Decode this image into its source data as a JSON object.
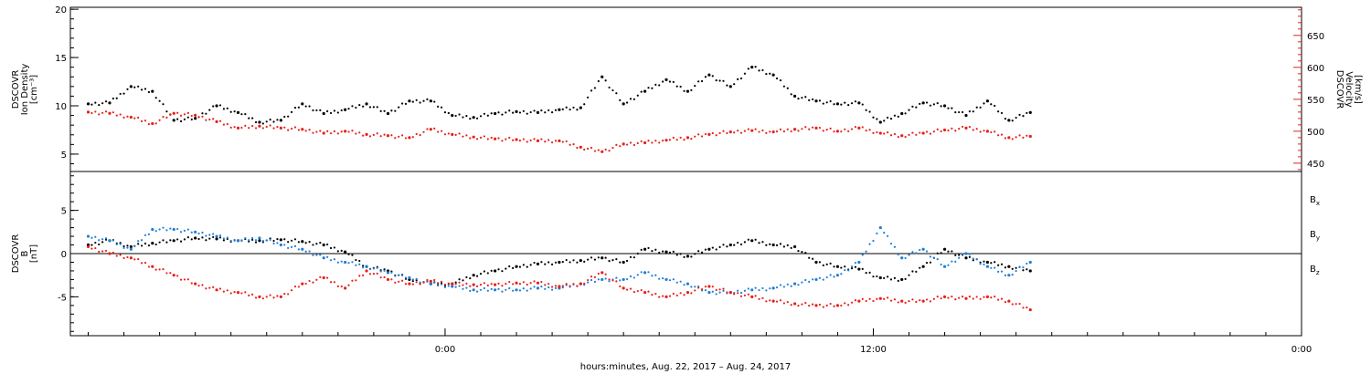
{
  "chart_data": [
    {
      "type": "scatter",
      "panel": "top",
      "left_axis": {
        "label_lines": [
          "DSCOVR",
          "Ion Density",
          "[cm⁻³]"
        ],
        "ticks": [
          "20",
          "15",
          "10",
          "5"
        ],
        "ylim": [
          3.2,
          20.2
        ],
        "color": "#000000"
      },
      "right_axis": {
        "label_lines": [
          "DSCOVR",
          "Velocity",
          "[km/s]"
        ],
        "ticks": [
          "650",
          "600",
          "550",
          "500",
          "450"
        ],
        "ylim": [
          437,
          694
        ],
        "color": "#e8201a"
      },
      "series": [
        {
          "role": "density",
          "axis": "left",
          "color": "#000000",
          "x": [
            -10,
            -9.4,
            -8.8,
            -8.2,
            -7.6,
            -7,
            -6.4,
            -5.8,
            -5.2,
            -4.6,
            -4,
            -3.4,
            -2.8,
            -2.2,
            -1.6,
            -1,
            -0.4,
            0.2,
            0.8,
            1.4,
            2,
            2.6,
            3.2,
            3.8,
            4.4,
            5,
            5.6,
            6.2,
            6.8,
            7.4,
            8,
            8.6,
            9.2,
            9.8,
            10.4,
            11,
            11.6,
            12.2,
            12.8,
            13.4,
            14,
            14.6,
            15.2,
            15.8,
            16.4
          ],
          "y": [
            10.2,
            10.3,
            12.0,
            11.5,
            8.5,
            8.7,
            10.0,
            9.3,
            8.3,
            8.5,
            10.2,
            9.2,
            9.6,
            10.2,
            9.2,
            10.5,
            10.5,
            9.0,
            8.8,
            9.2,
            9.4,
            9.3,
            9.6,
            9.8,
            13.0,
            10.2,
            11.5,
            12.7,
            11.5,
            13.2,
            12.0,
            14.0,
            13.2,
            11.0,
            10.5,
            10.2,
            10.3,
            8.3,
            9.2,
            10.3,
            10.0,
            9.0,
            10.5,
            8.5,
            9.3
          ]
        },
        {
          "role": "velocity",
          "axis": "right",
          "color": "#e8201a",
          "x": [
            -10,
            -9.4,
            -8.8,
            -8.2,
            -7.6,
            -7,
            -6.4,
            -5.8,
            -5.2,
            -4.6,
            -4,
            -3.4,
            -2.8,
            -2.2,
            -1.6,
            -1,
            -0.4,
            0.2,
            0.8,
            1.4,
            2,
            2.6,
            3.2,
            3.8,
            4.4,
            5,
            5.6,
            6.2,
            6.8,
            7.4,
            8,
            8.6,
            9.2,
            9.8,
            10.4,
            11,
            11.6,
            12.2,
            12.8,
            13.4,
            14,
            14.6,
            15.2,
            15.8,
            16.4
          ],
          "y": [
            530,
            528,
            522,
            512,
            528,
            525,
            515,
            505,
            508,
            505,
            503,
            497,
            500,
            495,
            493,
            490,
            503,
            495,
            491,
            488,
            487,
            485,
            485,
            475,
            468,
            480,
            482,
            486,
            490,
            495,
            499,
            501,
            499,
            503,
            505,
            500,
            505,
            497,
            493,
            497,
            502,
            505,
            500,
            490,
            492
          ]
        }
      ]
    },
    {
      "type": "scatter",
      "panel": "bottom",
      "left_axis": {
        "label_lines": [
          "DSCOVR",
          "B",
          "[nT]"
        ],
        "ticks": [
          "5",
          "0",
          "-5"
        ],
        "ylim": [
          -9.5,
          9.5
        ],
        "color": "#000000"
      },
      "zero_line": true,
      "series": [
        {
          "name": "Bx",
          "color": "#000000",
          "x": [
            -10,
            -9.4,
            -8.8,
            -8.2,
            -7.6,
            -7,
            -6.4,
            -5.8,
            -5.2,
            -4.6,
            -4,
            -3.4,
            -2.8,
            -2.2,
            -1.6,
            -1,
            -0.4,
            0.2,
            0.8,
            1.4,
            2,
            2.6,
            3.2,
            3.8,
            4.4,
            5,
            5.6,
            6.2,
            6.8,
            7.4,
            8,
            8.6,
            9.2,
            9.8,
            10.4,
            11,
            11.6,
            12.2,
            12.8,
            13.4,
            14,
            14.6,
            15.2,
            15.8,
            16.4
          ],
          "y": [
            1.0,
            1.5,
            0.8,
            1.2,
            1.5,
            1.8,
            1.7,
            1.5,
            1.5,
            1.6,
            1.4,
            1.0,
            0.2,
            -1.5,
            -2.0,
            -3.0,
            -3.5,
            -3.5,
            -2.5,
            -2.0,
            -1.5,
            -1.2,
            -1.0,
            -0.8,
            -0.5,
            -1.0,
            0.5,
            0.2,
            -0.3,
            0.5,
            1.0,
            1.5,
            1.0,
            0.8,
            -1.0,
            -1.5,
            -1.8,
            -2.8,
            -3.0,
            -1.5,
            0.5,
            -0.5,
            -1.0,
            -1.5,
            -2.0
          ]
        },
        {
          "name": "By",
          "color": "#1f7fd6",
          "x": [
            -10,
            -9.4,
            -8.8,
            -8.2,
            -7.6,
            -7,
            -6.4,
            -5.8,
            -5.2,
            -4.6,
            -4,
            -3.4,
            -2.8,
            -2.2,
            -1.6,
            -1,
            -0.4,
            0.2,
            0.8,
            1.4,
            2,
            2.6,
            3.2,
            3.8,
            4.4,
            5,
            5.6,
            6.2,
            6.8,
            7.4,
            8,
            8.6,
            9.2,
            9.8,
            10.4,
            11,
            11.6,
            12.2,
            12.8,
            13.4,
            14,
            14.6,
            15.2,
            15.8,
            16.4
          ],
          "y": [
            2.0,
            1.5,
            0.5,
            2.8,
            2.8,
            2.5,
            2.0,
            1.5,
            1.8,
            1.0,
            0.5,
            -0.5,
            -1.0,
            -1.5,
            -2.2,
            -2.8,
            -3.5,
            -3.8,
            -4.2,
            -4.2,
            -4.2,
            -4.0,
            -4.0,
            -3.5,
            -3.0,
            -3.0,
            -2.2,
            -3.0,
            -3.5,
            -4.5,
            -4.5,
            -4.2,
            -4.0,
            -3.5,
            -3.0,
            -2.5,
            -1.0,
            3.0,
            -0.5,
            0.5,
            -1.5,
            0.0,
            -1.5,
            -2.5,
            -1.0
          ]
        },
        {
          "name": "Bz",
          "color": "#e8201a",
          "x": [
            -10,
            -9.4,
            -8.8,
            -8.2,
            -7.6,
            -7,
            -6.4,
            -5.8,
            -5.2,
            -4.6,
            -4,
            -3.4,
            -2.8,
            -2.2,
            -1.6,
            -1,
            -0.4,
            0.2,
            0.8,
            1.4,
            2,
            2.6,
            3.2,
            3.8,
            4.4,
            5,
            5.6,
            6.2,
            6.8,
            7.4,
            8,
            8.6,
            9.2,
            9.8,
            10.4,
            11,
            11.6,
            12.2,
            12.8,
            13.4,
            14,
            14.6,
            15.2,
            15.8,
            16.4
          ],
          "y": [
            0.8,
            0.0,
            -0.5,
            -1.5,
            -2.5,
            -3.5,
            -4.2,
            -4.5,
            -5.0,
            -5.0,
            -3.5,
            -2.8,
            -4.0,
            -2.0,
            -3.0,
            -3.5,
            -3.2,
            -3.5,
            -3.6,
            -3.6,
            -3.4,
            -3.4,
            -3.8,
            -3.5,
            -2.2,
            -4.0,
            -4.5,
            -5.0,
            -4.5,
            -3.8,
            -4.5,
            -5.0,
            -5.5,
            -5.8,
            -6.0,
            -6.0,
            -5.5,
            -5.2,
            -5.5,
            -5.5,
            -5.0,
            -5.2,
            -5.0,
            -5.5,
            -6.5
          ]
        }
      ]
    }
  ],
  "x_axis": {
    "label": "hours:minutes, Aug. 22, 2017 – Aug. 24, 2017",
    "xlim": [
      -10.5,
      24.0
    ],
    "major_ticks": [
      {
        "x": 0,
        "label": "0:00"
      },
      {
        "x": 12,
        "label": "12:00"
      },
      {
        "x": 24,
        "label": "0:00"
      }
    ]
  },
  "legend": {
    "placement": "right of bottom panel",
    "entries": [
      {
        "base": "B",
        "sub": "x",
        "color": "#000000"
      },
      {
        "base": "B",
        "sub": "y",
        "color": "#1f7fd6"
      },
      {
        "base": "B",
        "sub": "z",
        "color": "#e8201a"
      }
    ]
  }
}
